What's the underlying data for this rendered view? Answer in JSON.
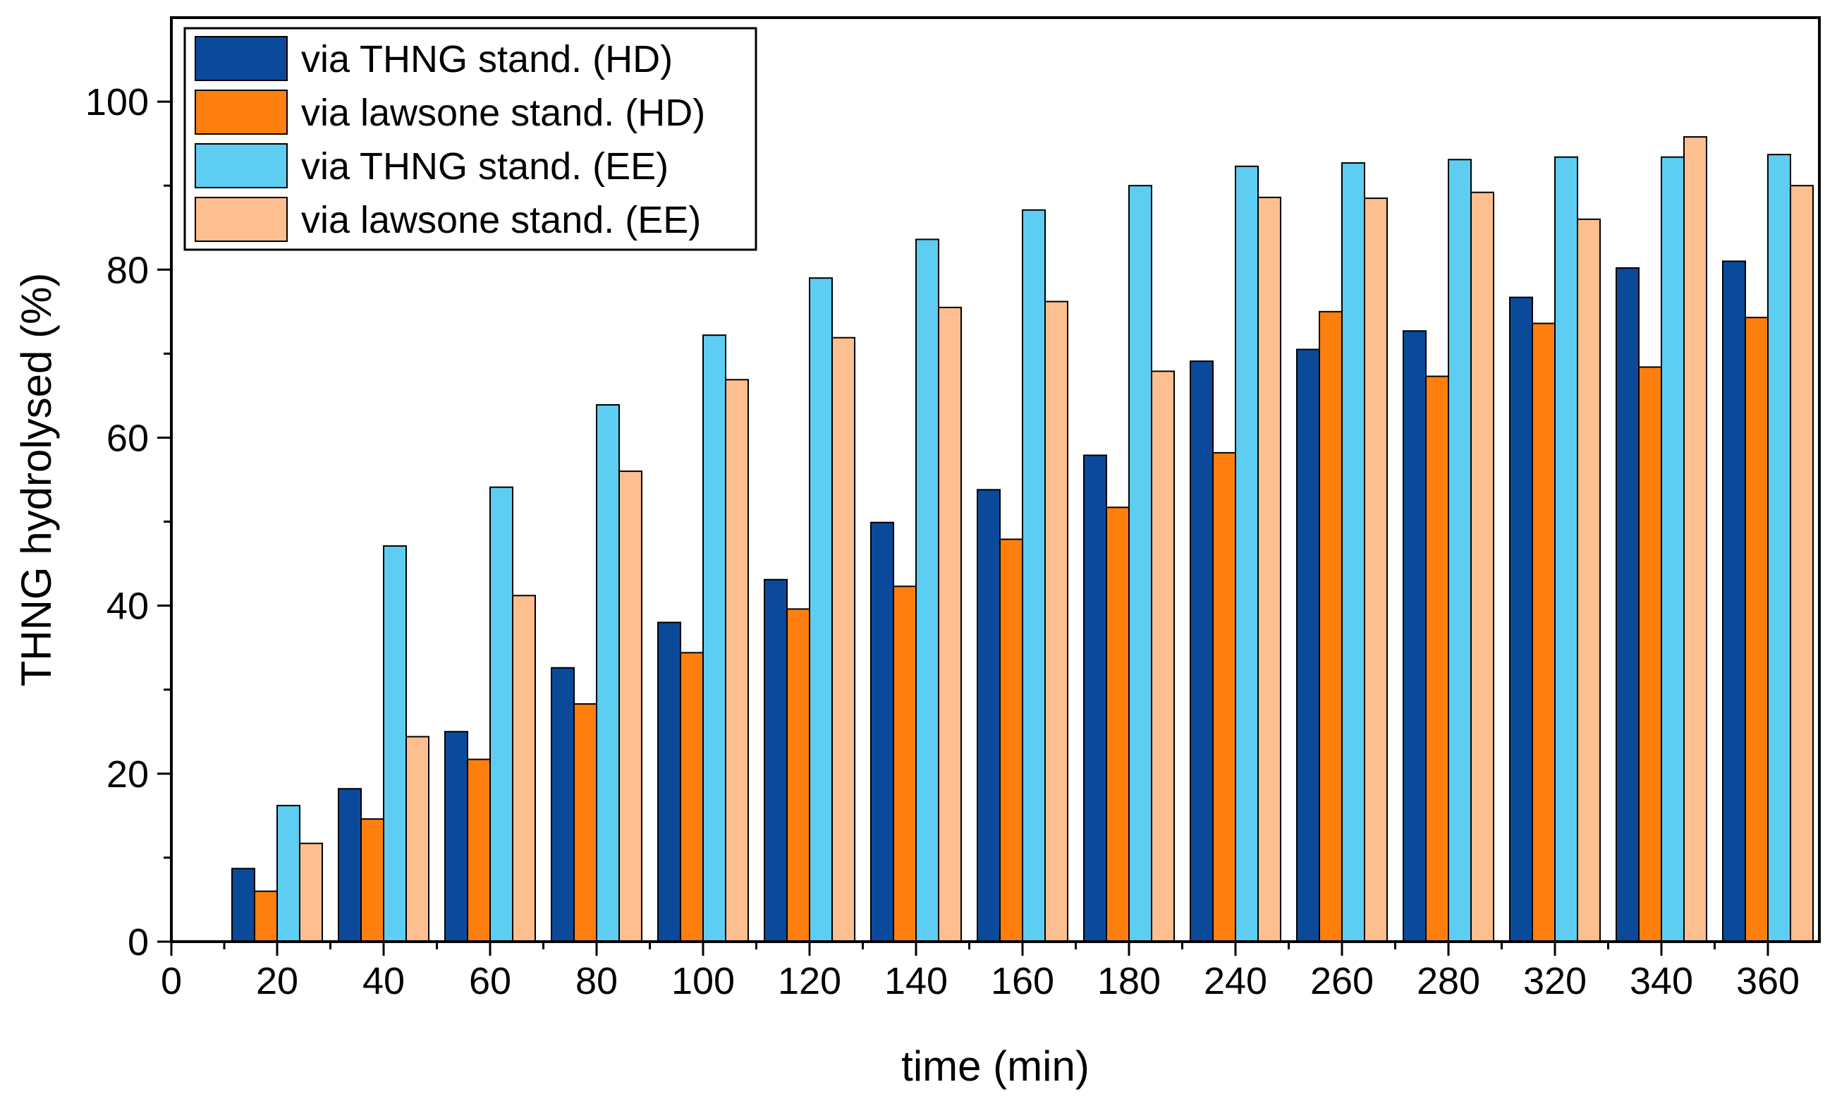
{
  "chart_data": {
    "type": "bar",
    "title": "",
    "xlabel": "time (min)",
    "ylabel": "THNG hydrolysed (%)",
    "ylim": [
      0,
      110
    ],
    "yticks": [
      "0",
      "20",
      "40",
      "60",
      "80",
      "100"
    ],
    "x_zero_label": "0",
    "categories": [
      "20",
      "40",
      "60",
      "80",
      "100",
      "120",
      "140",
      "160",
      "180",
      "240",
      "260",
      "280",
      "320",
      "340",
      "360"
    ],
    "legend_position": "top-left",
    "grid": false,
    "series": [
      {
        "name": "via THNG stand. (HD)",
        "color": "#0b4a9a",
        "values": [
          8.7,
          18.2,
          25.0,
          32.6,
          38.0,
          43.1,
          49.9,
          53.8,
          57.9,
          69.1,
          70.5,
          72.7,
          76.7,
          80.2,
          81.0
        ]
      },
      {
        "name": "via lawsone stand. (HD)",
        "color": "#ff7f0e",
        "values": [
          6.0,
          14.6,
          21.7,
          28.3,
          34.4,
          39.6,
          42.3,
          47.9,
          51.7,
          58.2,
          75.0,
          67.3,
          73.6,
          68.4,
          74.3
        ]
      },
      {
        "name": "via THNG stand. (EE)",
        "color": "#5ecdf2",
        "values": [
          16.2,
          47.1,
          54.1,
          63.9,
          72.2,
          79.0,
          83.6,
          87.1,
          90.0,
          92.3,
          92.7,
          93.1,
          93.4,
          93.4,
          93.7
        ]
      },
      {
        "name": "via lawsone stand. (EE)",
        "color": "#fdbf8f",
        "values": [
          11.7,
          24.4,
          41.2,
          56.0,
          66.9,
          71.9,
          75.5,
          76.2,
          67.9,
          88.6,
          88.5,
          89.2,
          86.0,
          95.8,
          90.0
        ]
      }
    ]
  }
}
